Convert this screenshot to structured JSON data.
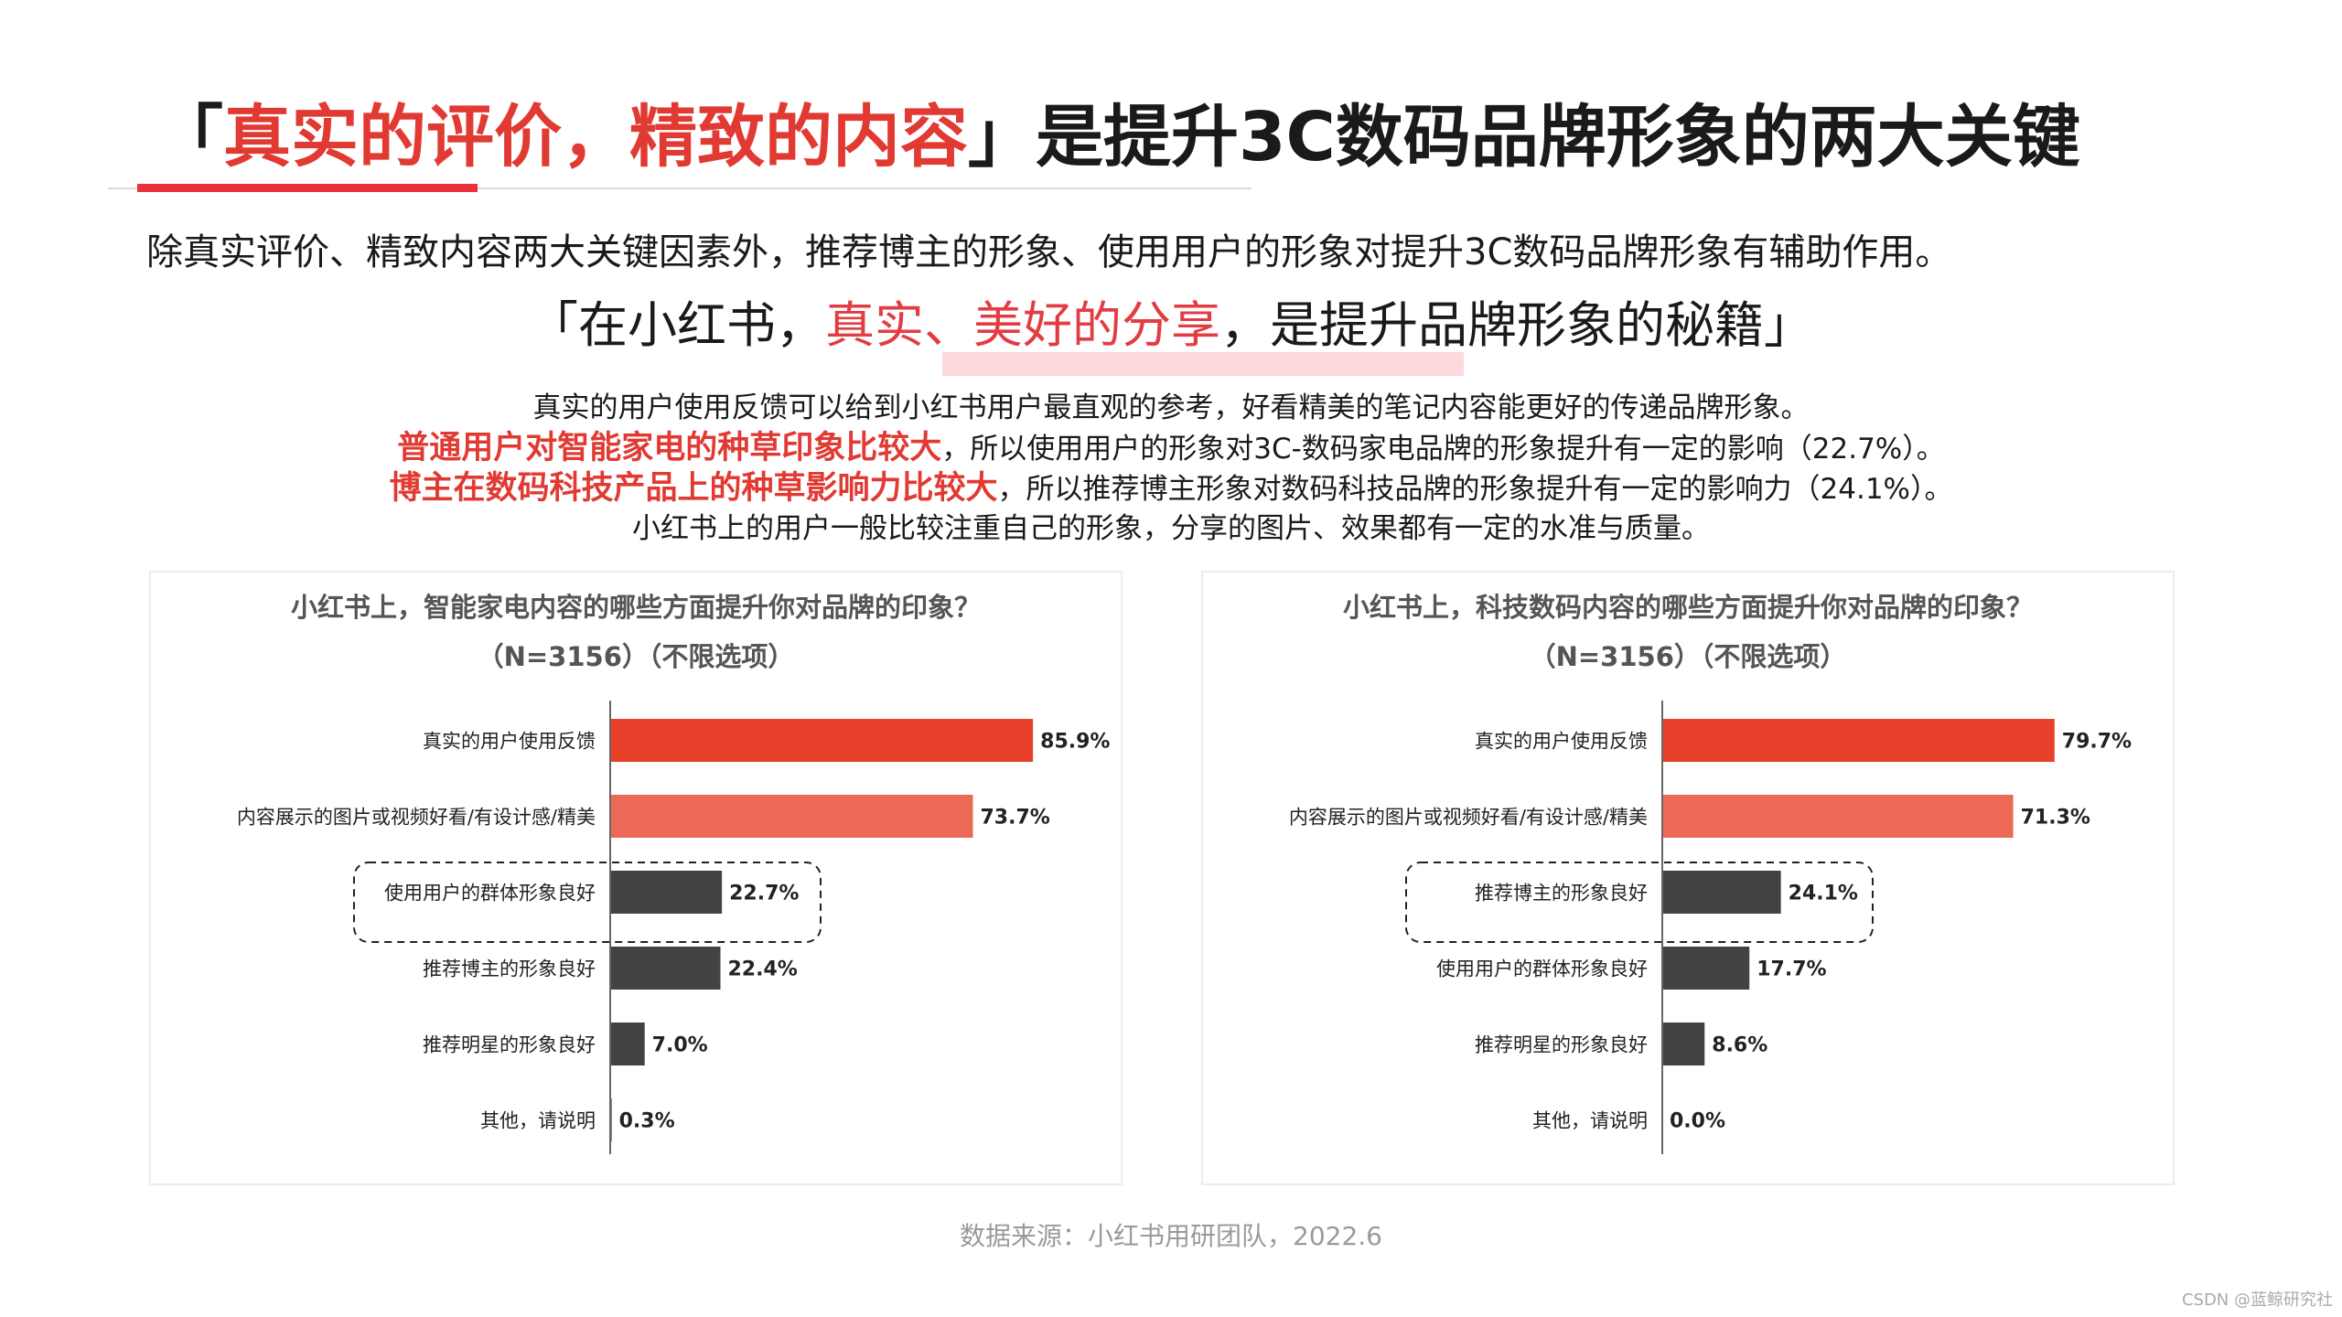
{
  "header": {
    "title_open": "「",
    "title_highlight": "真实的评价，精致的内容",
    "title_close": "」",
    "title_rest": "是提升3C数码品牌形象的两大关键"
  },
  "subtitle": "除真实评价、精致内容两大关键因素外，推荐博主的形象、使用用户的形象对提升3C数码品牌形象有辅助作用。",
  "quote": {
    "part1": "「在小红书，",
    "highlight": "真实、美好的分享",
    "part2": "，是提升品牌形象的秘籍」"
  },
  "description": {
    "line1": "真实的用户使用反馈可以给到小红书用户最直观的参考，好看精美的笔记内容能更好的传递品牌形象。",
    "line2_red": "普通用户对智能家电的种草印象比较大",
    "line2_rest": "，所以使用用户的形象对3C-数码家电品牌的形象提升有一定的影响（22.7%）。",
    "line3_red": "博主在数码科技产品上的种草影响力比较大",
    "line3_rest": "，所以推荐博主形象对数码科技品牌的形象提升有一定的影响力（24.1%）。",
    "line4": "小红书上的用户一般比较注重自己的形象，分享的图片、效果都有一定的水准与质量。"
  },
  "colors": {
    "accent_red": "#e8402b",
    "light_red": "#ec6a55",
    "dark_gray": "#434343",
    "title_red": "#e13a33"
  },
  "chart_data": [
    {
      "type": "bar",
      "orientation": "horizontal",
      "title": "小红书上，智能家电内容的哪些方面提升你对品牌的印象？",
      "subtitle": "（N=3156）（不限选项）",
      "categories": [
        "真实的用户使用反馈",
        "内容展示的图片或视频好看/有设计感/精美",
        "使用用户的群体形象良好",
        "推荐博主的形象良好",
        "推荐明星的形象良好",
        "其他，请说明"
      ],
      "values": [
        85.9,
        73.7,
        22.7,
        22.4,
        7.0,
        0.3
      ],
      "labels": [
        "85.9%",
        "73.7%",
        "22.7%",
        "22.4%",
        "7.0%",
        "0.3%"
      ],
      "bar_colors": [
        "#e8402b",
        "#ec6a55",
        "#434343",
        "#434343",
        "#434343",
        "#434343"
      ],
      "highlight_index": 2,
      "xlim": [
        0,
        100
      ]
    },
    {
      "type": "bar",
      "orientation": "horizontal",
      "title": "小红书上，科技数码内容的哪些方面提升你对品牌的印象？",
      "subtitle": "（N=3156）（不限选项）",
      "categories": [
        "真实的用户使用反馈",
        "内容展示的图片或视频好看/有设计感/精美",
        "推荐博主的形象良好",
        "使用用户的群体形象良好",
        "推荐明星的形象良好",
        "其他，请说明"
      ],
      "values": [
        79.7,
        71.3,
        24.1,
        17.7,
        8.6,
        0.0
      ],
      "labels": [
        "79.7%",
        "71.3%",
        "24.1%",
        "17.7%",
        "8.6%",
        "0.0%"
      ],
      "bar_colors": [
        "#e8402b",
        "#ec6a55",
        "#434343",
        "#434343",
        "#434343",
        "#434343"
      ],
      "highlight_index": 2,
      "xlim": [
        0,
        100
      ]
    }
  ],
  "source": "数据来源：小红书用研团队，2022.6",
  "watermark": "CSDN @蓝鲸研究社"
}
